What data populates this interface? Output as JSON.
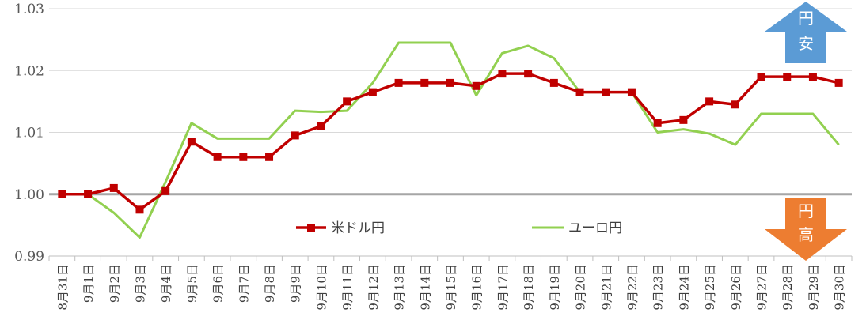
{
  "chart_data": {
    "type": "line",
    "title": "",
    "xlabel": "",
    "ylabel": "",
    "ylim": [
      0.99,
      1.03
    ],
    "yticks": [
      "0.99",
      "1.00",
      "1.01",
      "1.02",
      "1.03"
    ],
    "ytick_values": [
      0.99,
      1.0,
      1.01,
      1.02,
      1.03
    ],
    "grid": true,
    "reference_line": 1.0,
    "categories": [
      "8月31日",
      "9月1日",
      "9月2日",
      "9月3日",
      "9月4日",
      "9月5日",
      "9月6日",
      "9月7日",
      "9月8日",
      "9月9日",
      "9月10日",
      "9月11日",
      "9月12日",
      "9月13日",
      "9月14日",
      "9月15日",
      "9月16日",
      "9月17日",
      "9月18日",
      "9月19日",
      "9月20日",
      "9月21日",
      "9月22日",
      "9月23日",
      "9月24日",
      "9月25日",
      "9月26日",
      "9月27日",
      "9月28日",
      "9月29日",
      "9月30日"
    ],
    "series": [
      {
        "name": "米ドル円",
        "color": "#c00000",
        "marker": "square",
        "values": [
          1.0,
          1.0,
          1.001,
          0.9975,
          1.0005,
          1.0085,
          1.006,
          1.006,
          1.006,
          1.0095,
          1.011,
          1.015,
          1.0165,
          1.018,
          1.018,
          1.018,
          1.0175,
          1.0195,
          1.0195,
          1.018,
          1.0165,
          1.0165,
          1.0165,
          1.0115,
          1.012,
          1.015,
          1.0145,
          1.019,
          1.019,
          1.019,
          1.018
        ]
      },
      {
        "name": "ユーロ円",
        "color": "#92d050",
        "marker": "none",
        "values": [
          1.0,
          1.0,
          0.997,
          0.993,
          1.002,
          1.0115,
          1.009,
          1.009,
          1.009,
          1.0135,
          1.0133,
          1.0135,
          1.018,
          1.0245,
          1.0245,
          1.0245,
          1.016,
          1.0228,
          1.024,
          1.022,
          1.0165,
          1.0165,
          1.0165,
          1.01,
          1.0105,
          1.0098,
          1.008,
          1.013,
          1.013,
          1.013,
          1.008
        ]
      }
    ],
    "legend_position": "bottom-center"
  },
  "annotations": {
    "yen_weak": {
      "chars": [
        "円",
        "安"
      ],
      "color": "#5b9bd5",
      "direction": "up"
    },
    "yen_strong": {
      "chars": [
        "円",
        "高"
      ],
      "color": "#ed7d31",
      "direction": "down"
    }
  }
}
